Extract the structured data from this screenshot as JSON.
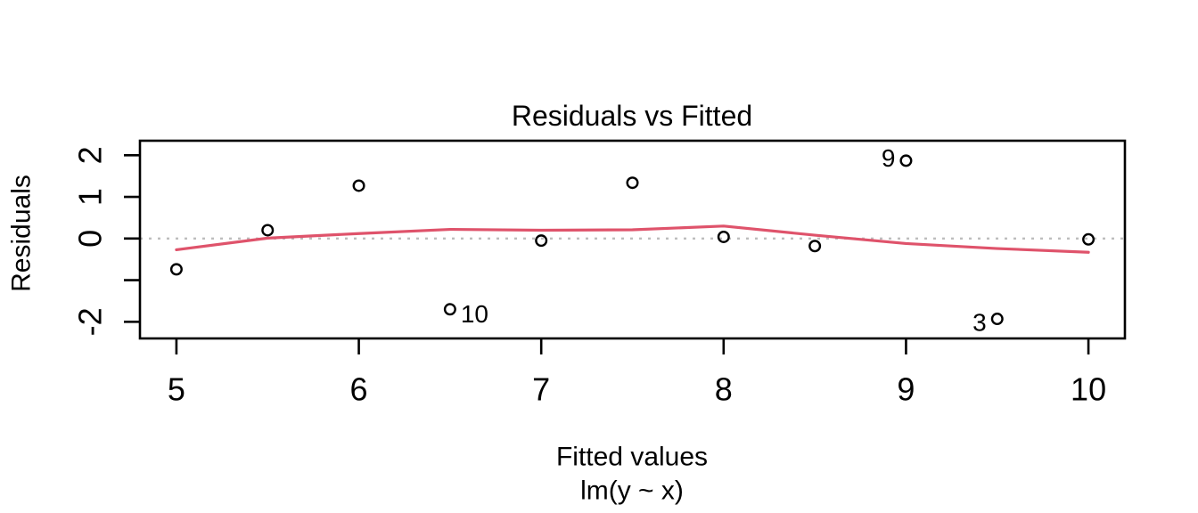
{
  "chart_data": {
    "type": "scatter",
    "title": "Residuals vs Fitted",
    "xlabel": "Fitted values",
    "xlabel_sub": "lm(y ~ x)",
    "ylabel": "Residuals",
    "xlim": [
      4.8,
      10.2
    ],
    "ylim": [
      -2.4,
      2.35
    ],
    "x_ticks": [
      {
        "value": 5,
        "label": "5"
      },
      {
        "value": 6,
        "label": "6"
      },
      {
        "value": 7,
        "label": "7"
      },
      {
        "value": 8,
        "label": "8"
      },
      {
        "value": 9,
        "label": "9"
      },
      {
        "value": 10,
        "label": "10"
      }
    ],
    "y_ticks": [
      {
        "value": 2,
        "label": "2"
      },
      {
        "value": 1,
        "label": "1"
      },
      {
        "value": 0,
        "label": "0"
      },
      {
        "value": -1,
        "label": ""
      },
      {
        "value": -2,
        "label": "-2"
      }
    ],
    "points": [
      {
        "x": 5.0,
        "y": -0.74
      },
      {
        "x": 5.5,
        "y": 0.2
      },
      {
        "x": 6.0,
        "y": 1.27
      },
      {
        "x": 6.5,
        "y": -1.7,
        "label": "10",
        "label_side": "right",
        "label_dy": 5
      },
      {
        "x": 7.0,
        "y": -0.05
      },
      {
        "x": 7.5,
        "y": 1.34
      },
      {
        "x": 8.0,
        "y": 0.04
      },
      {
        "x": 8.5,
        "y": -0.18
      },
      {
        "x": 9.0,
        "y": 1.87,
        "label": "9",
        "label_side": "left",
        "label_dy": -3
      },
      {
        "x": 9.5,
        "y": -1.93,
        "label": "3",
        "label_side": "left",
        "label_dy": 4
      },
      {
        "x": 10.0,
        "y": -0.02
      }
    ],
    "smoother": [
      [
        5.0,
        -0.27
      ],
      [
        5.5,
        0.01
      ],
      [
        6.0,
        0.12
      ],
      [
        6.5,
        0.22
      ],
      [
        7.0,
        0.2
      ],
      [
        7.5,
        0.21
      ],
      [
        8.0,
        0.3
      ],
      [
        8.5,
        0.08
      ],
      [
        9.0,
        -0.12
      ],
      [
        9.5,
        -0.24
      ],
      [
        10.0,
        -0.33
      ]
    ],
    "zero_line_y": 0,
    "legend": "none",
    "grid": "off",
    "colors": {
      "smoother_line": "#df536b",
      "zero_line": "#bdbdbd",
      "point_stroke": "#000000",
      "axis": "#000000",
      "background": "#ffffff"
    }
  }
}
